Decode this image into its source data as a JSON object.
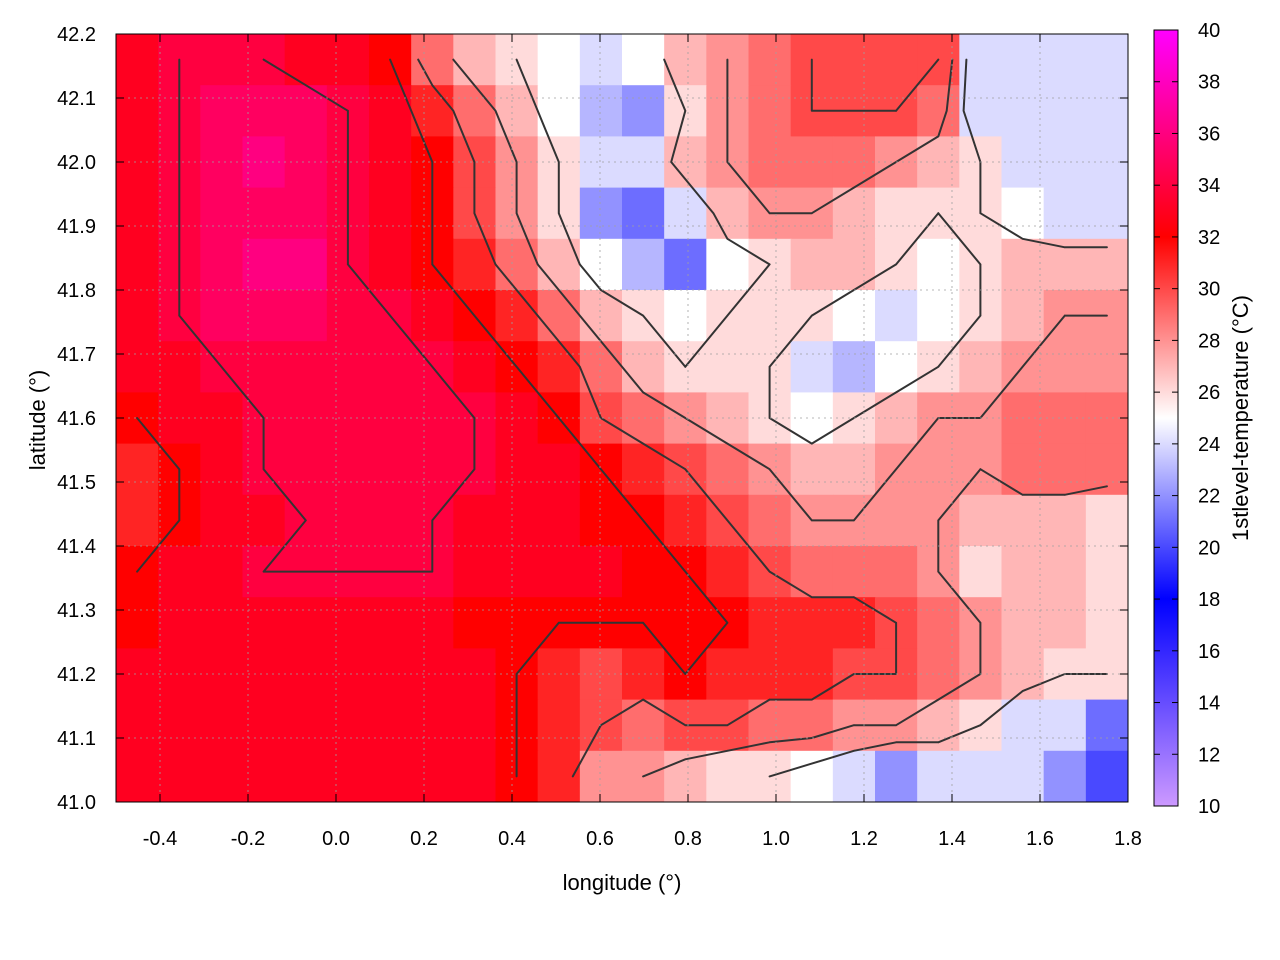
{
  "chart_data": {
    "type": "heatmap",
    "xlabel": "longitude (°)",
    "ylabel": "latitude (°)",
    "colorbar_label": "1stlevel-temperature (°C)",
    "xlim": [
      -0.5,
      1.8
    ],
    "ylim": [
      41.0,
      42.2
    ],
    "clim": [
      10,
      40
    ],
    "x_ticks": [
      -0.4,
      -0.2,
      0.0,
      0.2,
      0.4,
      0.6,
      0.8,
      1.0,
      1.2,
      1.4,
      1.6,
      1.8
    ],
    "x_tick_labels": [
      "-0.4",
      "-0.2",
      "0.0",
      "0.2",
      "0.4",
      "0.6",
      "0.8",
      "1.0",
      "1.2",
      "1.4",
      "1.6",
      "1.8"
    ],
    "y_ticks": [
      41.0,
      41.1,
      41.2,
      41.3,
      41.4,
      41.5,
      41.6,
      41.7,
      41.8,
      41.9,
      42.0,
      42.1,
      42.2
    ],
    "y_tick_labels": [
      "41.0",
      "41.1",
      "41.2",
      "41.3",
      "41.4",
      "41.5",
      "41.6",
      "41.7",
      "41.8",
      "41.9",
      "42.0",
      "42.1",
      "42.2"
    ],
    "colorbar_ticks": [
      10,
      12,
      14,
      16,
      18,
      20,
      22,
      24,
      26,
      28,
      30,
      32,
      34,
      36,
      38,
      40
    ],
    "colorbar_tick_labels": [
      "10",
      "12",
      "14",
      "16",
      "18",
      "20",
      "22",
      "24",
      "26",
      "28",
      "30",
      "32",
      "34",
      "36",
      "38",
      "40"
    ],
    "colormap": [
      {
        "value": 10,
        "color": "#cc99ff"
      },
      {
        "value": 18,
        "color": "#0000ff"
      },
      {
        "value": 25,
        "color": "#ffffff"
      },
      {
        "value": 32,
        "color": "#ff0000"
      },
      {
        "value": 40,
        "color": "#ff00ff"
      }
    ],
    "grid": true,
    "contours": true,
    "grid_resolution": [
      1.0,
      0.5
    ],
    "values": [
      [
        33,
        34,
        34,
        34,
        33,
        33,
        32,
        29,
        27,
        26,
        25,
        24,
        25,
        27,
        28,
        29,
        30,
        30,
        30,
        30,
        24,
        24,
        24,
        24
      ],
      [
        33,
        34,
        35,
        35,
        35,
        34,
        33,
        31,
        29,
        27,
        25,
        23,
        22,
        26,
        28,
        29,
        30,
        30,
        30,
        29,
        24,
        24,
        24,
        24
      ],
      [
        33,
        34,
        35,
        36,
        35,
        34,
        33,
        32,
        30,
        28,
        26,
        24,
        24,
        27,
        28,
        29,
        29,
        29,
        28,
        27,
        26,
        24,
        24,
        24
      ],
      [
        33,
        34,
        35,
        35,
        35,
        34,
        33,
        32,
        30,
        28,
        26,
        22,
        21,
        24,
        27,
        28,
        28,
        27,
        26,
        26,
        26,
        25,
        24,
        24
      ],
      [
        33,
        34,
        35,
        36,
        36,
        34,
        33,
        32,
        31,
        29,
        27,
        25,
        23,
        21,
        25,
        26,
        27,
        27,
        26,
        25,
        26,
        27,
        27,
        27
      ],
      [
        33,
        34,
        35,
        35,
        35,
        34,
        34,
        33,
        32,
        31,
        29,
        27,
        26,
        25,
        26,
        26,
        26,
        25,
        24,
        25,
        26,
        27,
        28,
        28
      ],
      [
        33,
        33,
        34,
        34,
        34,
        34,
        34,
        34,
        33,
        32,
        31,
        29,
        27,
        26,
        26,
        26,
        24,
        23,
        25,
        26,
        27,
        28,
        28,
        28
      ],
      [
        32,
        33,
        33,
        34,
        34,
        34,
        34,
        34,
        34,
        33,
        32,
        30,
        29,
        28,
        27,
        26,
        25,
        26,
        27,
        28,
        28,
        29,
        29,
        29
      ],
      [
        31,
        32,
        33,
        34,
        34,
        34,
        34,
        34,
        34,
        33,
        33,
        32,
        31,
        30,
        29,
        28,
        27,
        27,
        28,
        28,
        28,
        29,
        29,
        29
      ],
      [
        31,
        32,
        33,
        33,
        34,
        34,
        34,
        34,
        33,
        33,
        33,
        32,
        32,
        31,
        30,
        29,
        28,
        28,
        28,
        28,
        27,
        27,
        27,
        26
      ],
      [
        32,
        33,
        33,
        34,
        34,
        34,
        34,
        34,
        33,
        33,
        33,
        33,
        32,
        32,
        31,
        30,
        29,
        29,
        29,
        28,
        26,
        27,
        27,
        26
      ],
      [
        32,
        33,
        33,
        33,
        33,
        33,
        33,
        33,
        32,
        32,
        32,
        32,
        32,
        32,
        32,
        31,
        31,
        31,
        30,
        29,
        28,
        27,
        27,
        26
      ],
      [
        33,
        33,
        33,
        33,
        33,
        33,
        33,
        33,
        33,
        32,
        31,
        30,
        31,
        32,
        31,
        31,
        31,
        30,
        30,
        29,
        28,
        27,
        26,
        26
      ],
      [
        33,
        33,
        33,
        33,
        33,
        33,
        33,
        33,
        33,
        32,
        31,
        30,
        29,
        30,
        30,
        29,
        29,
        28,
        28,
        27,
        26,
        24,
        24,
        21
      ],
      [
        33,
        33,
        33,
        33,
        33,
        33,
        33,
        33,
        33,
        32,
        31,
        28,
        28,
        27,
        26,
        26,
        25,
        24,
        22,
        24,
        24,
        24,
        22,
        20
      ]
    ]
  }
}
